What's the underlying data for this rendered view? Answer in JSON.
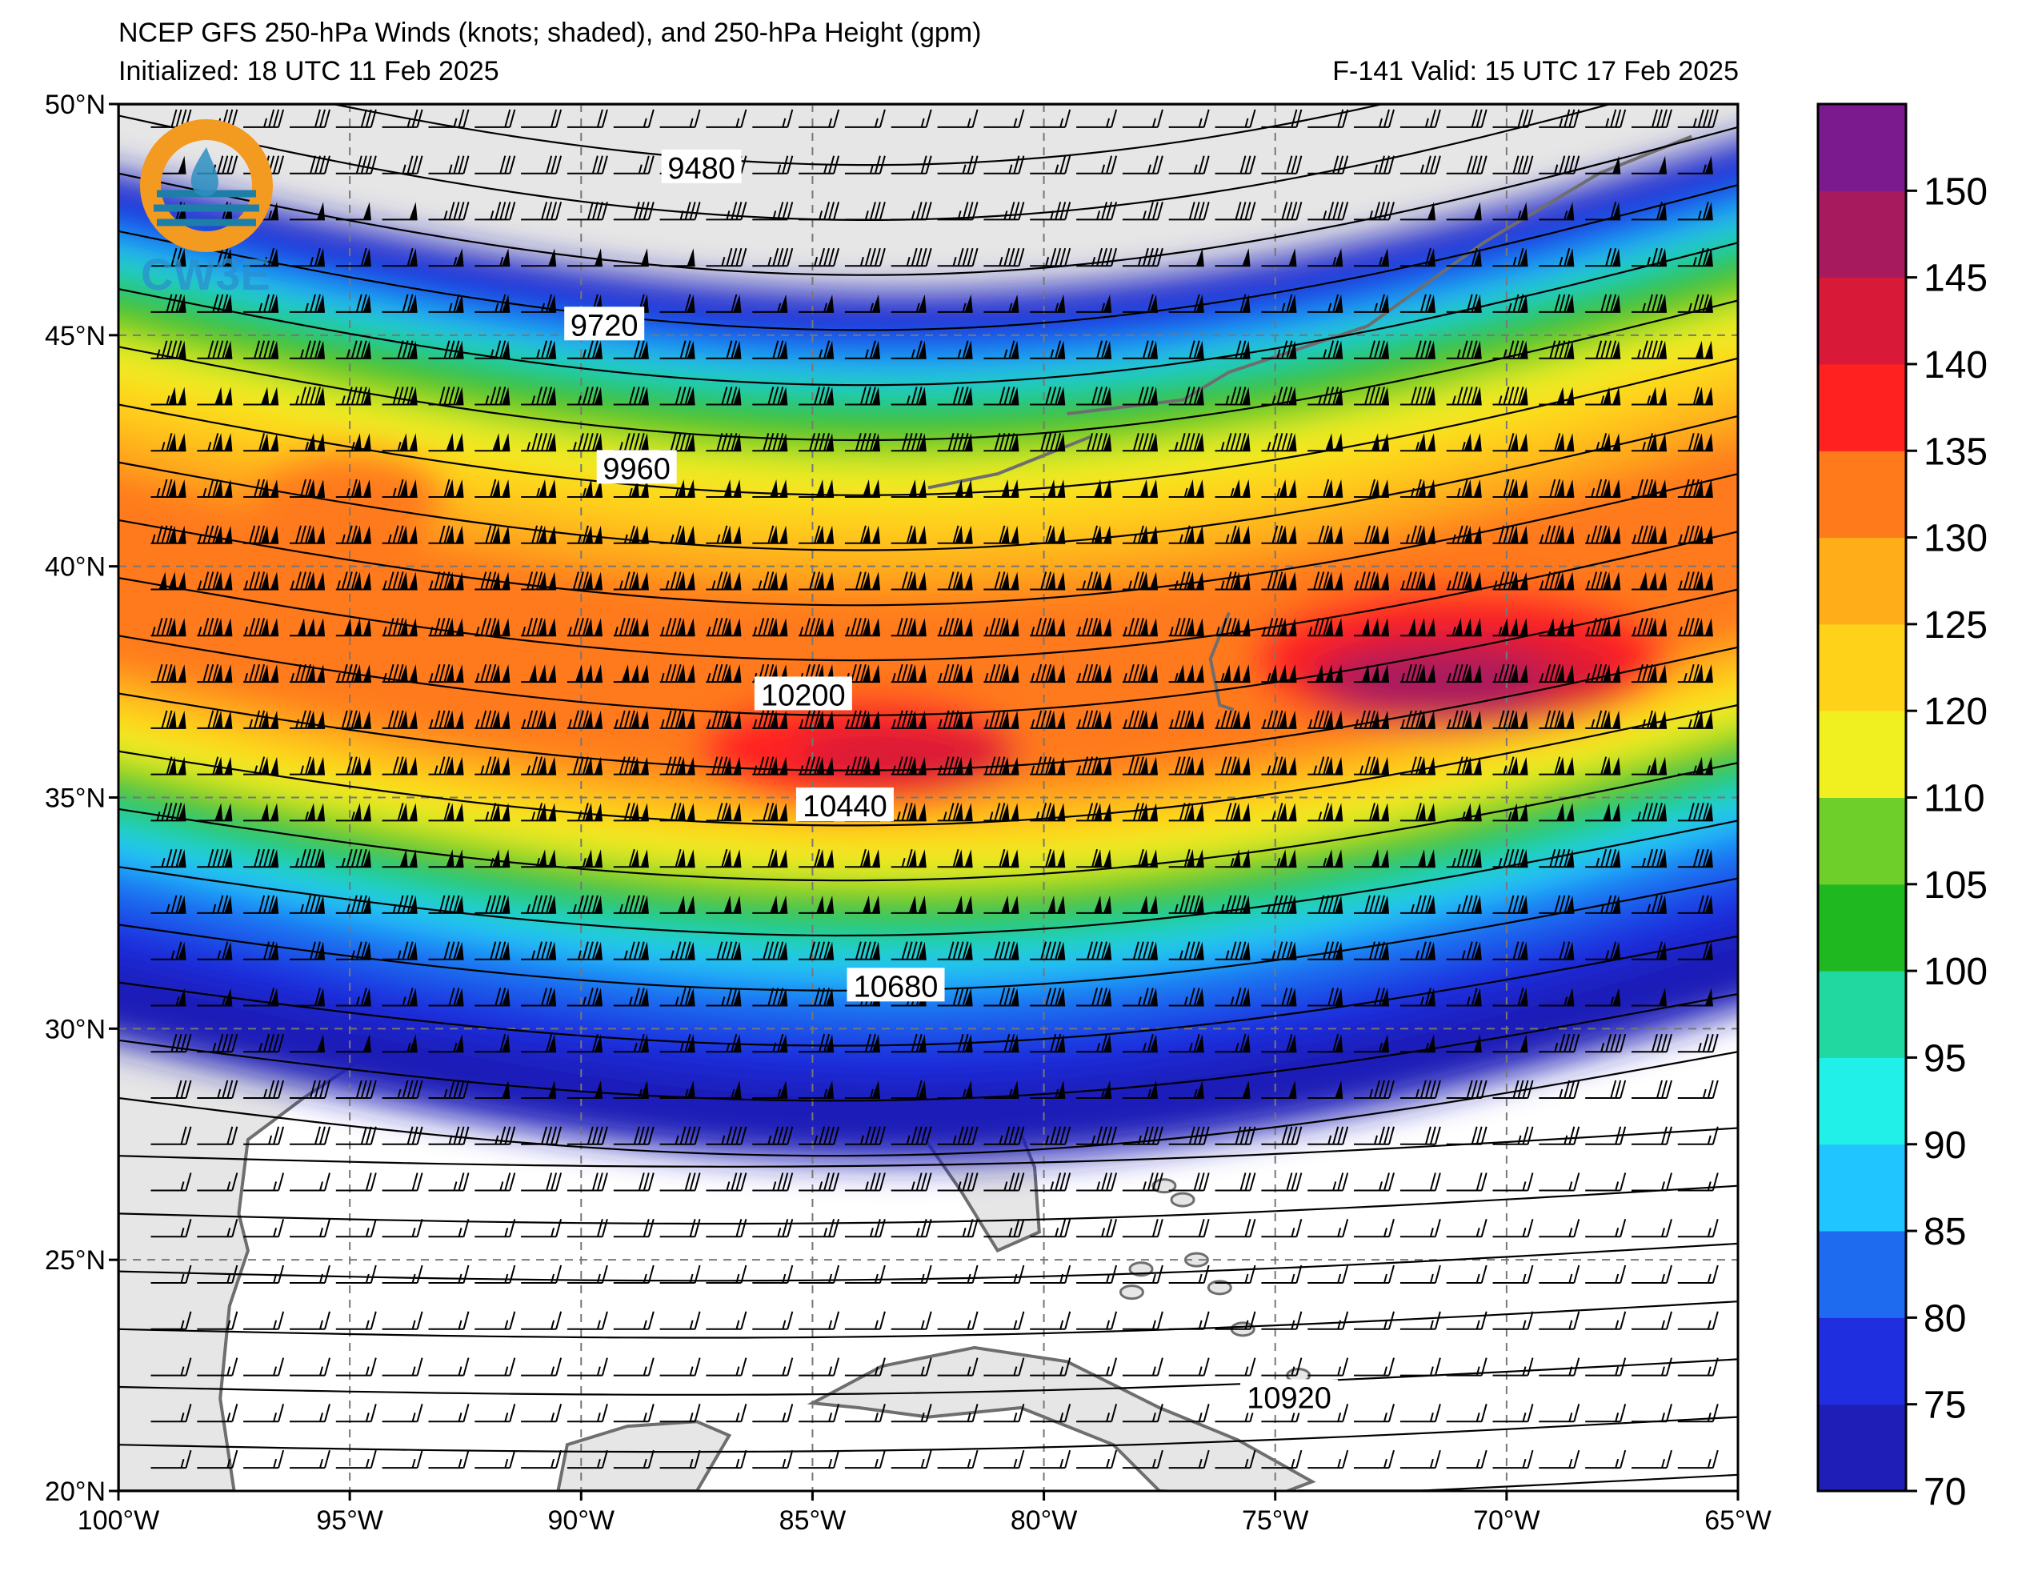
{
  "header": {
    "title_line1": "NCEP GFS 250-hPa Winds (knots; shaded), and 250-hPa Height (gpm)",
    "title_line2_left": "Initialized: 18 UTC 11 Feb 2025",
    "title_line2_right": "F-141  Valid: 15 UTC 17 Feb 2025"
  },
  "logo": {
    "text": "CW3E",
    "icon": "cw3e-logo-icon"
  },
  "map": {
    "extent": {
      "lon_min": -100,
      "lon_max": -65,
      "lat_min": 20,
      "lat_max": 50
    },
    "lat_labels": [
      "50°N",
      "45°N",
      "40°N",
      "35°N",
      "30°N",
      "25°N",
      "20°N"
    ],
    "lon_labels": [
      "100°W",
      "95°W",
      "90°W",
      "85°W",
      "80°W",
      "75°W",
      "70°W",
      "65°W"
    ],
    "height_contours": [
      {
        "value": "9480",
        "label_lon": -87.4,
        "label_lat": 48.6
      },
      {
        "value": "9720",
        "label_lon": -89.5,
        "label_lat": 45.2
      },
      {
        "value": "9960",
        "label_lon": -88.8,
        "label_lat": 42.1
      },
      {
        "value": "10200",
        "label_lon": -85.2,
        "label_lat": 37.2
      },
      {
        "value": "10440",
        "label_lon": -84.3,
        "label_lat": 34.8
      },
      {
        "value": "10680",
        "label_lon": -83.2,
        "label_lat": 30.9
      },
      {
        "value": "10920",
        "label_lon": -74.7,
        "label_lat": 22.0
      }
    ]
  },
  "colorbar": {
    "ticks": [
      "70",
      "75",
      "80",
      "85",
      "90",
      "95",
      "100",
      "105",
      "110",
      "120",
      "125",
      "130",
      "135",
      "140",
      "145",
      "150"
    ],
    "colors": [
      "#1f1fb8",
      "#1f2fe0",
      "#1e6bf0",
      "#20c4ff",
      "#20f0e8",
      "#20d8a0",
      "#20b820",
      "#6ecf2a",
      "#f0f020",
      "#ffd21a",
      "#ffae1a",
      "#ff7a1a",
      "#ff2020",
      "#d81a38",
      "#a81a5e",
      "#7a1a8e"
    ]
  },
  "chart_data": {
    "type": "heatmap",
    "variable": "250-hPa wind speed (knots)",
    "jet_core": {
      "max_knots": 150,
      "region": "Mid-Atlantic coast ~37°N 72°W"
    },
    "contour_field": "250-hPa Height (gpm)",
    "contour_levels": [
      9480,
      9720,
      9960,
      10200,
      10440,
      10680,
      10920
    ]
  }
}
